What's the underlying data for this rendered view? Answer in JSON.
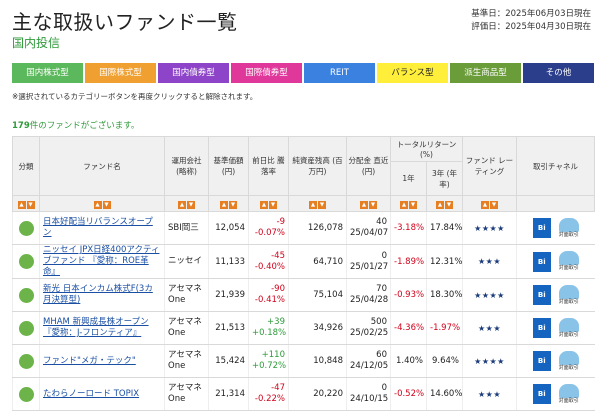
{
  "header": {
    "title": "主な取扱いファンド一覧",
    "subtitle": "国内投信",
    "base_date": "基準日：2025年06月03日現在",
    "eval_date": "評価日：2025年04月30日現在"
  },
  "categories": [
    {
      "label": "国内株式型",
      "color": "#5cb85c"
    },
    {
      "label": "国際株式型",
      "color": "#f0a030"
    },
    {
      "label": "国内債券型",
      "color": "#8e44c8"
    },
    {
      "label": "国際債券型",
      "color": "#e0389a"
    },
    {
      "label": "REIT",
      "color": "#3b82e0"
    },
    {
      "label": "バランス型",
      "color": "#ffef3a"
    },
    {
      "label": "派生商品型",
      "color": "#6a9c3a"
    },
    {
      "label": "その他",
      "color": "#2a3e8c"
    }
  ],
  "note": "※選択されているカテゴリーボタンを再度クリックすると解除されます。",
  "count": {
    "number": "179",
    "suffix": "件のファンドがございます。"
  },
  "table": {
    "headers": {
      "category": "分類",
      "fund_name": "ファンド名",
      "company": "運用会社 (略称)",
      "nav": "基準価額 (円)",
      "change": "前日比 騰落率",
      "assets": "純資産残高 (百万円)",
      "distribution": "分配金 直近 (円)",
      "total_return": "トータルリターン (%)",
      "one_year": "1年",
      "three_year": "3年 (年率)",
      "rating": "ファンド レーティング",
      "channel": "取引チャネル"
    },
    "sort_up": "▲",
    "sort_down": "▼",
    "channel_label": "対面取引",
    "bt_label": "Bi",
    "rows": [
      {
        "name": "日本好配当リバランスオープン",
        "company": "SBI岡三",
        "nav": "12,054",
        "chg": "-9",
        "chg_pct": "-0.07%",
        "chg_sign": "neg",
        "assets": "126,078",
        "dist": "40",
        "dist_date": "25/04/07",
        "r1": "-3.18%",
        "r1_sign": "neg",
        "r3": "17.84%",
        "r3_sign": "",
        "stars": "★★★★"
      },
      {
        "name": "ニッセイ JPX日経400アクティブファンド 『愛称：ROE革命』",
        "company": "ニッセイ",
        "nav": "11,133",
        "chg": "-45",
        "chg_pct": "-0.40%",
        "chg_sign": "neg",
        "assets": "64,710",
        "dist": "0",
        "dist_date": "25/01/27",
        "r1": "-1.89%",
        "r1_sign": "neg",
        "r3": "12.31%",
        "r3_sign": "",
        "stars": "★★★"
      },
      {
        "name": "新光 日本インカム株式F(3カ月決算型)",
        "company": "アセマネOne",
        "nav": "21,939",
        "chg": "-90",
        "chg_pct": "-0.41%",
        "chg_sign": "neg",
        "assets": "75,104",
        "dist": "70",
        "dist_date": "25/04/28",
        "r1": "-0.93%",
        "r1_sign": "neg",
        "r3": "18.30%",
        "r3_sign": "",
        "stars": "★★★★"
      },
      {
        "name": "MHAM 新興成長株オープン 『愛称：J-フロンティア』",
        "company": "アセマネOne",
        "nav": "21,513",
        "chg": "+39",
        "chg_pct": "+0.18%",
        "chg_sign": "pos",
        "assets": "34,926",
        "dist": "500",
        "dist_date": "25/02/25",
        "r1": "-4.36%",
        "r1_sign": "neg",
        "r3": "-1.97%",
        "r3_sign": "neg",
        "stars": "★★★"
      },
      {
        "name": "ファンド\"メガ・テック\"",
        "company": "アセマネOne",
        "nav": "15,424",
        "chg": "+110",
        "chg_pct": "+0.72%",
        "chg_sign": "pos",
        "assets": "10,848",
        "dist": "60",
        "dist_date": "24/12/05",
        "r1": "1.40%",
        "r1_sign": "",
        "r3": "9.64%",
        "r3_sign": "",
        "stars": "★★★★"
      },
      {
        "name": "たわらノーロード TOPIX",
        "company": "アセマネOne",
        "nav": "21,314",
        "chg": "-47",
        "chg_pct": "-0.22%",
        "chg_sign": "neg",
        "assets": "20,220",
        "dist": "0",
        "dist_date": "24/10/15",
        "r1": "-0.52%",
        "r1_sign": "neg",
        "r3": "14.60%",
        "r3_sign": "",
        "stars": "★★★"
      }
    ]
  }
}
